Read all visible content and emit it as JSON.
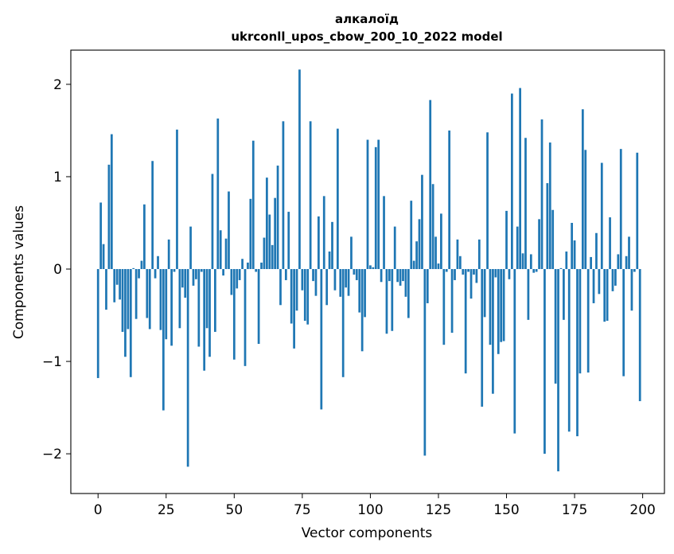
{
  "chart_data": {
    "type": "bar",
    "title_line1": "алкалоїд",
    "title_line2": "ukrconll_upos_cbow_200_10_2022 model",
    "xlabel": "Vector components",
    "ylabel": "Components values",
    "xlim": [
      -10,
      208
    ],
    "ylim": [
      -2.43,
      2.37
    ],
    "xticks": [
      0,
      25,
      50,
      75,
      100,
      125,
      150,
      175,
      200
    ],
    "yticks": [
      -2,
      -1,
      0,
      1,
      2
    ],
    "ytick_labels": [
      "−2",
      "−1",
      "0",
      "1",
      "2"
    ],
    "bar_color": "#1f77b4",
    "grid": false,
    "values": [
      -1.18,
      0.72,
      0.27,
      -0.44,
      1.13,
      1.46,
      -0.36,
      -0.17,
      -0.33,
      -0.68,
      -0.95,
      -0.65,
      -1.17,
      0.01,
      -0.54,
      -0.1,
      0.09,
      0.7,
      -0.53,
      -0.65,
      1.17,
      -0.1,
      0.14,
      -0.66,
      -1.53,
      -0.76,
      0.32,
      -0.83,
      -0.03,
      1.51,
      -0.64,
      -0.2,
      -0.31,
      -2.14,
      0.46,
      -0.18,
      -0.11,
      -0.84,
      -0.03,
      -1.1,
      -0.64,
      -0.95,
      1.03,
      -0.68,
      1.63,
      0.42,
      -0.07,
      0.33,
      0.84,
      -0.28,
      -0.98,
      -0.21,
      -0.12,
      0.11,
      -1.05,
      0.07,
      0.76,
      1.39,
      -0.03,
      -0.81,
      0.07,
      0.34,
      0.99,
      0.59,
      0.26,
      0.77,
      1.12,
      -0.39,
      1.6,
      -0.12,
      0.62,
      -0.59,
      -0.86,
      -0.45,
      2.16,
      -0.23,
      -0.56,
      -0.6,
      1.6,
      -0.13,
      -0.29,
      0.57,
      -1.52,
      0.79,
      -0.39,
      0.19,
      0.51,
      -0.23,
      1.52,
      -0.3,
      -1.17,
      -0.2,
      -0.29,
      0.35,
      -0.06,
      -0.12,
      -0.47,
      -0.89,
      -0.52,
      1.4,
      0.04,
      0.02,
      1.32,
      1.4,
      -0.14,
      0.79,
      -0.7,
      -0.13,
      -0.67,
      0.46,
      -0.14,
      -0.18,
      -0.13,
      -0.3,
      -0.53,
      0.74,
      0.09,
      0.3,
      0.54,
      1.02,
      -2.02,
      -0.37,
      1.83,
      0.92,
      0.35,
      0.06,
      0.6,
      -0.82,
      -0.03,
      1.5,
      -0.69,
      -0.12,
      0.32,
      0.14,
      -0.06,
      -1.13,
      -0.03,
      -0.32,
      -0.06,
      -0.15,
      0.32,
      -1.49,
      -0.52,
      1.48,
      -0.82,
      -1.35,
      -0.09,
      -0.92,
      -0.79,
      -0.78,
      0.63,
      -0.11,
      1.9,
      -1.78,
      0.46,
      1.96,
      0.17,
      1.42,
      -0.55,
      0.16,
      -0.04,
      -0.03,
      0.54,
      1.62,
      -2.0,
      0.93,
      1.37,
      0.64,
      -1.24,
      -2.19,
      0.01,
      -0.55,
      0.19,
      -1.76,
      0.5,
      0.31,
      -1.81,
      -1.13,
      1.73,
      1.29,
      -1.12,
      0.13,
      -0.37,
      0.39,
      -0.27,
      1.15,
      -0.57,
      -0.56,
      0.56,
      -0.24,
      -0.18,
      0.16,
      1.3,
      -1.16,
      0.14,
      0.35,
      -0.45,
      -0.03,
      1.26,
      -1.43
    ]
  }
}
